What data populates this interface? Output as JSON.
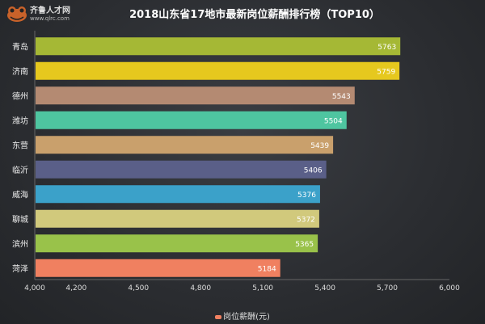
{
  "logo": {
    "name": "齐鲁人才网",
    "url": "www.qlrc.com"
  },
  "chart_data": {
    "type": "bar",
    "orientation": "horizontal",
    "title": "2018山东省17地市最新岗位薪酬排行榜（TOP10）",
    "categories": [
      "青岛",
      "济南",
      "德州",
      "潍坊",
      "东营",
      "临沂",
      "威海",
      "聊城",
      "滨州",
      "菏泽"
    ],
    "series": [
      {
        "name": "岗位薪酬(元)",
        "values": [
          5763,
          5759,
          5543,
          5504,
          5439,
          5406,
          5376,
          5372,
          5365,
          5184
        ]
      }
    ],
    "bar_colors": [
      "#a5b835",
      "#e6c81e",
      "#b48a72",
      "#4ec5a0",
      "#c9a06c",
      "#5a5f88",
      "#3ba1c9",
      "#d1c97c",
      "#99c24a",
      "#f08060"
    ],
    "xlim": [
      4000,
      6000
    ],
    "xticks": [
      "4,000",
      "4,200",
      "4,500",
      "4,800",
      "5,100",
      "5,400",
      "5,700",
      "6,000"
    ],
    "xtick_values": [
      4000,
      4200,
      4500,
      4800,
      5100,
      5400,
      5700,
      6000
    ],
    "grid": false,
    "legend": "bottom"
  }
}
